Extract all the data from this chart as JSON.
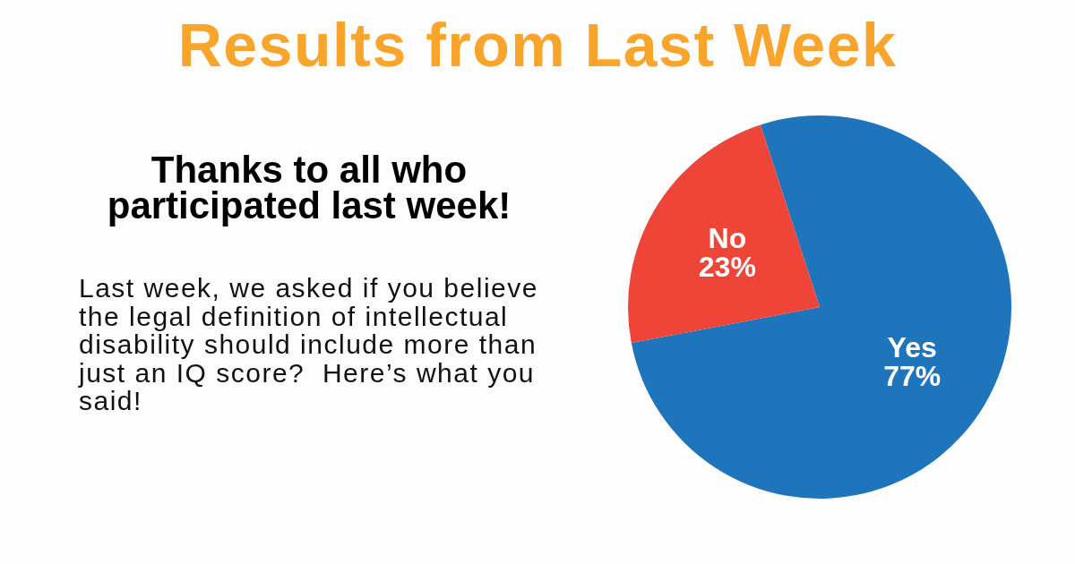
{
  "chart_data": {
    "type": "pie",
    "title": "Results from Last Week",
    "subtitle": "Thanks to all who participated last week!",
    "annotations": [
      "Last week, we asked if you believe the legal definition of intellectual disability should include more than just an IQ score?  Here’s what you said!"
    ],
    "categories": [
      "Yes",
      "No"
    ],
    "values": [
      77,
      23
    ],
    "colors": [
      "#1f75bc",
      "#ef4438"
    ],
    "value_labels": [
      "77%",
      "23%"
    ]
  }
}
